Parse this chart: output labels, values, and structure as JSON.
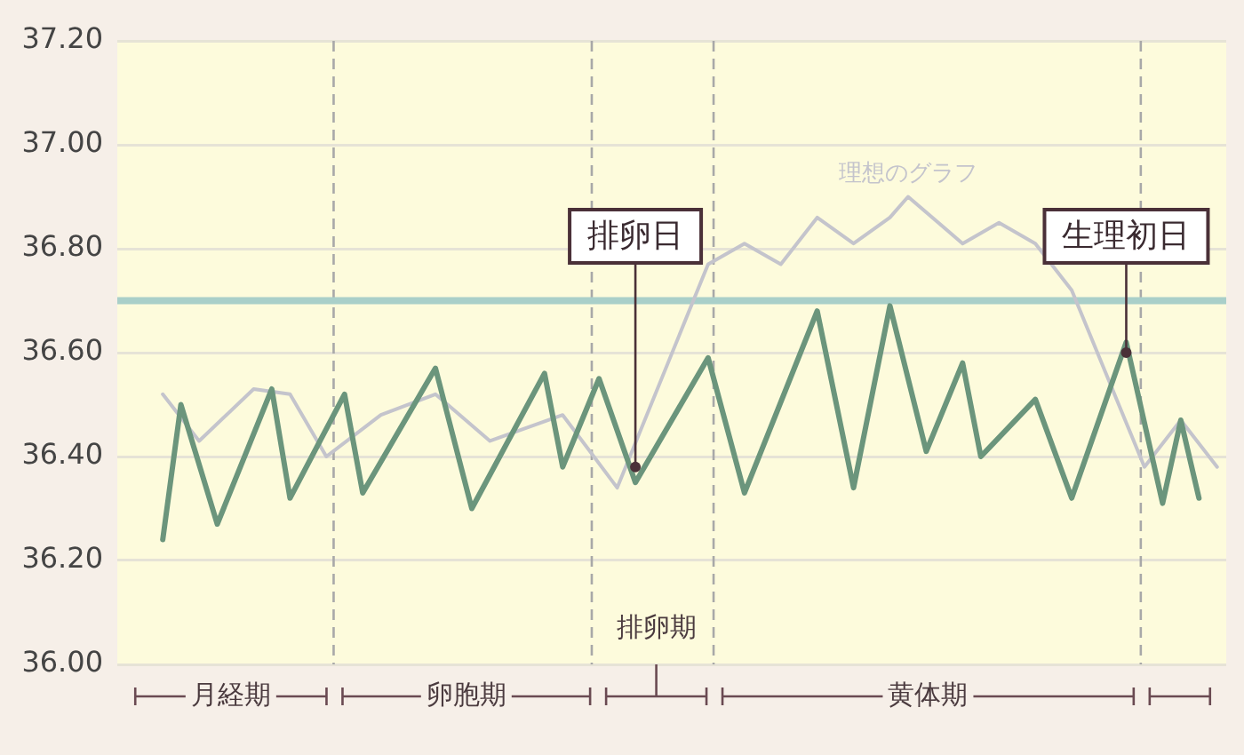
{
  "chart_data": {
    "type": "line",
    "ylim": [
      36,
      37.2
    ],
    "categories": [
      null,
      null,
      null,
      null,
      null,
      null,
      null,
      null,
      null,
      null,
      null,
      null,
      null,
      null,
      null,
      null,
      null,
      null,
      null,
      null,
      null,
      null,
      null,
      null,
      null,
      null,
      null,
      null,
      null,
      null,
      null,
      null,
      null,
      null,
      null,
      null,
      null,
      null,
      null,
      null,
      null,
      null,
      null,
      null,
      null,
      null,
      null,
      null,
      null,
      null,
      null,
      null,
      null,
      null,
      null,
      null,
      null,
      null,
      null,
      null,
      null
    ],
    "yticks": [
      {
        "value": 36,
        "label": "36.00"
      },
      {
        "value": 36.2,
        "label": "36.20"
      },
      {
        "value": 36.4,
        "label": "36.40"
      },
      {
        "value": 36.6,
        "label": "36.60"
      },
      {
        "value": 36.8,
        "label": "36.80"
      },
      {
        "value": 37,
        "label": "37.00"
      },
      {
        "value": 37.2,
        "label": "37.20"
      }
    ],
    "tick_labels": "y",
    "grid": "y",
    "legend": false,
    "marker": "none",
    "line_style": "solid",
    "series": [
      {
        "name": "理想のグラフ",
        "color": "#c4c4cc",
        "values": [
          null,
          null,
          36.52,
          null,
          36.43,
          null,
          null,
          36.53,
          null,
          36.52,
          null,
          36.4,
          null,
          null,
          36.48,
          null,
          null,
          36.52,
          null,
          null,
          36.43,
          null,
          null,
          null,
          36.48,
          null,
          null,
          36.34,
          null,
          null,
          null,
          null,
          36.77,
          null,
          36.81,
          null,
          36.77,
          null,
          36.86,
          null,
          36.81,
          null,
          36.86,
          36.9,
          null,
          null,
          36.81,
          null,
          36.85,
          null,
          36.81,
          null,
          36.72,
          null,
          null,
          null,
          36.38,
          null,
          36.47,
          null,
          36.38
        ]
      },
      {
        "color": "#6b957c",
        "values": [
          null,
          null,
          36.24,
          36.5,
          null,
          36.27,
          null,
          null,
          36.53,
          36.32,
          null,
          null,
          36.52,
          36.33,
          null,
          null,
          null,
          36.57,
          null,
          36.3,
          null,
          null,
          null,
          36.56,
          36.38,
          null,
          36.55,
          null,
          36.35,
          null,
          null,
          null,
          36.59,
          null,
          36.33,
          null,
          null,
          null,
          36.68,
          null,
          36.34,
          null,
          36.69,
          null,
          36.41,
          null,
          36.58,
          36.4,
          null,
          null,
          36.51,
          null,
          36.32,
          null,
          null,
          36.62,
          null,
          36.31,
          36.47,
          36.32,
          null
        ]
      }
    ],
    "ref_lines": [
      {
        "axis": "y",
        "value": 36.7,
        "color": "#a9cfc9",
        "line_style": "solid"
      }
    ],
    "annotations": [
      "排卵日",
      "生理初日",
      "月経期",
      "卵胞期",
      "排卵期",
      "黄体期"
    ]
  }
}
